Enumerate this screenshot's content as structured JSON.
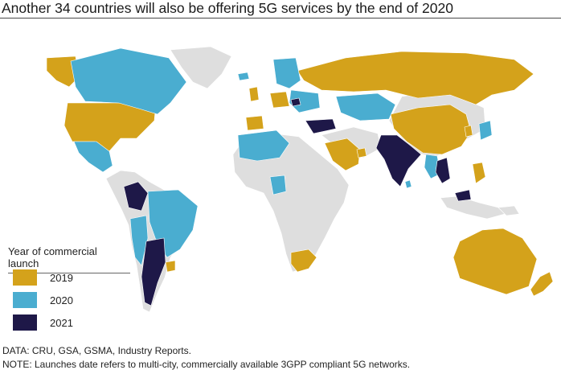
{
  "title": "Another 34 countries will also be offering 5G services by the end of 2020",
  "legend": {
    "title": "Year of commercial launch",
    "items": [
      {
        "label": "2019",
        "color": "#d4a21b"
      },
      {
        "label": "2020",
        "color": "#4aadd0"
      },
      {
        "label": "2021",
        "color": "#1e1848"
      }
    ]
  },
  "colors": {
    "no_launch": "#dedede",
    "ocean": "#ffffff"
  },
  "footer": {
    "source": "DATA: CRU, GSA, GSMA, Industry Reports.",
    "note": "NOTE: Launches date refers to multi-city, commercially available 3GPP compliant 5G networks."
  }
}
